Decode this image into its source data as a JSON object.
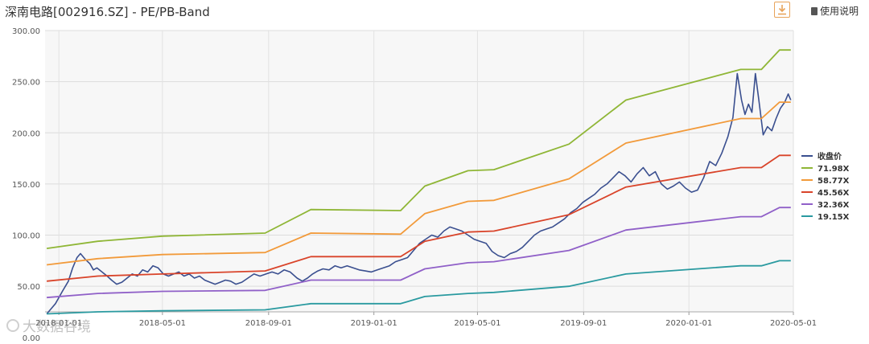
{
  "header": {
    "title": "深南电路[002916.SZ] - PE/PB-Band",
    "download_icon": "download-icon",
    "help_label": "使用说明",
    "help_icon": "document-icon"
  },
  "watermark": {
    "text": "大数据谷境"
  },
  "chart_data": {
    "type": "line",
    "title": "",
    "xlabel": "",
    "ylabel": "",
    "ylim": [
      25,
      300
    ],
    "y_ticks": [
      "300.00",
      "250.00",
      "200.00",
      "150.00",
      "100.00",
      "50.00",
      "0.00"
    ],
    "x_ticks": [
      "2018-01-01",
      "2018-05-01",
      "2018-09-01",
      "2019-01-01",
      "2019-05-01",
      "2019-09-01",
      "2020-01-01",
      "2020-05-01"
    ],
    "grid": true,
    "legend_position": "right",
    "x_start": "2017-12-16",
    "x_end": "2020-05-01",
    "series": [
      {
        "name": "收盘价",
        "color": "#3a4f8f",
        "points": [
          [
            "2017-12-18",
            23
          ],
          [
            "2017-12-22",
            27
          ],
          [
            "2017-12-28",
            33
          ],
          [
            "2018-01-05",
            45
          ],
          [
            "2018-01-12",
            55
          ],
          [
            "2018-01-17",
            68
          ],
          [
            "2018-01-22",
            78
          ],
          [
            "2018-01-26",
            82
          ],
          [
            "2018-02-01",
            76
          ],
          [
            "2018-02-06",
            72
          ],
          [
            "2018-02-10",
            66
          ],
          [
            "2018-02-14",
            68
          ],
          [
            "2018-02-20",
            64
          ],
          [
            "2018-02-26",
            60
          ],
          [
            "2018-03-03",
            56
          ],
          [
            "2018-03-09",
            52
          ],
          [
            "2018-03-15",
            54
          ],
          [
            "2018-03-21",
            58
          ],
          [
            "2018-03-27",
            62
          ],
          [
            "2018-04-02",
            60
          ],
          [
            "2018-04-08",
            66
          ],
          [
            "2018-04-14",
            64
          ],
          [
            "2018-04-20",
            70
          ],
          [
            "2018-04-26",
            68
          ],
          [
            "2018-05-02",
            62
          ],
          [
            "2018-05-08",
            60
          ],
          [
            "2018-05-14",
            62
          ],
          [
            "2018-05-20",
            64
          ],
          [
            "2018-05-26",
            60
          ],
          [
            "2018-06-01",
            62
          ],
          [
            "2018-06-07",
            58
          ],
          [
            "2018-06-13",
            60
          ],
          [
            "2018-06-19",
            56
          ],
          [
            "2018-06-25",
            54
          ],
          [
            "2018-07-01",
            52
          ],
          [
            "2018-07-07",
            54
          ],
          [
            "2018-07-13",
            56
          ],
          [
            "2018-07-19",
            55
          ],
          [
            "2018-07-25",
            52
          ],
          [
            "2018-08-01",
            54
          ],
          [
            "2018-08-08",
            58
          ],
          [
            "2018-08-15",
            62
          ],
          [
            "2018-08-22",
            60
          ],
          [
            "2018-08-29",
            62
          ],
          [
            "2018-09-05",
            64
          ],
          [
            "2018-09-12",
            62
          ],
          [
            "2018-09-19",
            66
          ],
          [
            "2018-09-26",
            64
          ],
          [
            "2018-10-04",
            58
          ],
          [
            "2018-10-10",
            55
          ],
          [
            "2018-10-16",
            58
          ],
          [
            "2018-10-22",
            62
          ],
          [
            "2018-10-28",
            65
          ],
          [
            "2018-11-03",
            67
          ],
          [
            "2018-11-10",
            66
          ],
          [
            "2018-11-17",
            70
          ],
          [
            "2018-11-24",
            68
          ],
          [
            "2018-12-01",
            70
          ],
          [
            "2018-12-08",
            68
          ],
          [
            "2018-12-15",
            66
          ],
          [
            "2018-12-22",
            65
          ],
          [
            "2018-12-29",
            64
          ],
          [
            "2019-01-05",
            66
          ],
          [
            "2019-01-12",
            68
          ],
          [
            "2019-01-19",
            70
          ],
          [
            "2019-01-26",
            74
          ],
          [
            "2019-02-02",
            76
          ],
          [
            "2019-02-09",
            78
          ],
          [
            "2019-02-16",
            85
          ],
          [
            "2019-02-23",
            92
          ],
          [
            "2019-03-02",
            96
          ],
          [
            "2019-03-09",
            100
          ],
          [
            "2019-03-16",
            98
          ],
          [
            "2019-03-23",
            104
          ],
          [
            "2019-03-30",
            108
          ],
          [
            "2019-04-06",
            106
          ],
          [
            "2019-04-13",
            104
          ],
          [
            "2019-04-20",
            100
          ],
          [
            "2019-04-27",
            96
          ],
          [
            "2019-05-04",
            94
          ],
          [
            "2019-05-11",
            92
          ],
          [
            "2019-05-18",
            84
          ],
          [
            "2019-05-25",
            80
          ],
          [
            "2019-06-01",
            78
          ],
          [
            "2019-06-08",
            82
          ],
          [
            "2019-06-15",
            84
          ],
          [
            "2019-06-22",
            88
          ],
          [
            "2019-06-29",
            94
          ],
          [
            "2019-07-06",
            100
          ],
          [
            "2019-07-13",
            104
          ],
          [
            "2019-07-20",
            106
          ],
          [
            "2019-07-27",
            108
          ],
          [
            "2019-08-03",
            112
          ],
          [
            "2019-08-10",
            116
          ],
          [
            "2019-08-17",
            122
          ],
          [
            "2019-08-24",
            126
          ],
          [
            "2019-08-31",
            132
          ],
          [
            "2019-09-07",
            136
          ],
          [
            "2019-09-14",
            140
          ],
          [
            "2019-09-21",
            146
          ],
          [
            "2019-09-28",
            150
          ],
          [
            "2019-10-05",
            156
          ],
          [
            "2019-10-12",
            162
          ],
          [
            "2019-10-19",
            158
          ],
          [
            "2019-10-26",
            152
          ],
          [
            "2019-11-02",
            160
          ],
          [
            "2019-11-09",
            166
          ],
          [
            "2019-11-16",
            158
          ],
          [
            "2019-11-23",
            162
          ],
          [
            "2019-11-30",
            150
          ],
          [
            "2019-12-07",
            145
          ],
          [
            "2019-12-14",
            148
          ],
          [
            "2019-12-21",
            152
          ],
          [
            "2019-12-28",
            146
          ],
          [
            "2020-01-04",
            142
          ],
          [
            "2020-01-11",
            144
          ],
          [
            "2020-01-18",
            156
          ],
          [
            "2020-01-25",
            172
          ],
          [
            "2020-02-01",
            168
          ],
          [
            "2020-02-08",
            180
          ],
          [
            "2020-02-15",
            196
          ],
          [
            "2020-02-21",
            215
          ],
          [
            "2020-02-26",
            258
          ],
          [
            "2020-03-02",
            232
          ],
          [
            "2020-03-06",
            218
          ],
          [
            "2020-03-10",
            228
          ],
          [
            "2020-03-14",
            220
          ],
          [
            "2020-03-18",
            258
          ],
          [
            "2020-03-22",
            232
          ],
          [
            "2020-03-27",
            198
          ],
          [
            "2020-04-01",
            206
          ],
          [
            "2020-04-06",
            202
          ],
          [
            "2020-04-11",
            214
          ],
          [
            "2020-04-16",
            224
          ],
          [
            "2020-04-21",
            230
          ],
          [
            "2020-04-25",
            238
          ],
          [
            "2020-04-28",
            232
          ]
        ]
      },
      {
        "name": "71.98X",
        "color": "#8fb636",
        "points": [
          [
            "2017-12-18",
            87
          ],
          [
            "2018-02-15",
            94
          ],
          [
            "2018-05-01",
            99
          ],
          [
            "2018-08-28",
            102
          ],
          [
            "2018-10-20",
            125
          ],
          [
            "2019-02-01",
            124
          ],
          [
            "2019-03-01",
            148
          ],
          [
            "2019-04-20",
            163
          ],
          [
            "2019-05-20",
            164
          ],
          [
            "2019-08-15",
            189
          ],
          [
            "2019-10-20",
            232
          ],
          [
            "2020-03-01",
            262
          ],
          [
            "2020-03-25",
            262
          ],
          [
            "2020-04-15",
            281
          ],
          [
            "2020-04-28",
            281
          ]
        ]
      },
      {
        "name": "58.77X",
        "color": "#f29a3a",
        "points": [
          [
            "2017-12-18",
            71
          ],
          [
            "2018-02-15",
            77
          ],
          [
            "2018-05-01",
            81
          ],
          [
            "2018-08-28",
            83
          ],
          [
            "2018-10-20",
            102
          ],
          [
            "2019-02-01",
            101
          ],
          [
            "2019-03-01",
            121
          ],
          [
            "2019-04-20",
            133
          ],
          [
            "2019-05-20",
            134
          ],
          [
            "2019-08-15",
            155
          ],
          [
            "2019-10-20",
            190
          ],
          [
            "2020-03-01",
            214
          ],
          [
            "2020-03-25",
            214
          ],
          [
            "2020-04-15",
            230
          ],
          [
            "2020-04-28",
            230
          ]
        ]
      },
      {
        "name": "45.56X",
        "color": "#d9442a",
        "points": [
          [
            "2017-12-18",
            55
          ],
          [
            "2018-02-15",
            60
          ],
          [
            "2018-05-01",
            62
          ],
          [
            "2018-08-28",
            65
          ],
          [
            "2018-10-20",
            79
          ],
          [
            "2019-02-01",
            79
          ],
          [
            "2019-03-01",
            94
          ],
          [
            "2019-04-20",
            103
          ],
          [
            "2019-05-20",
            104
          ],
          [
            "2019-08-15",
            120
          ],
          [
            "2019-10-20",
            147
          ],
          [
            "2020-03-01",
            166
          ],
          [
            "2020-03-25",
            166
          ],
          [
            "2020-04-15",
            178
          ],
          [
            "2020-04-28",
            178
          ]
        ]
      },
      {
        "name": "32.36X",
        "color": "#9060c8",
        "points": [
          [
            "2017-12-18",
            39
          ],
          [
            "2018-02-15",
            43
          ],
          [
            "2018-05-01",
            45
          ],
          [
            "2018-08-28",
            46
          ],
          [
            "2018-10-20",
            56
          ],
          [
            "2019-02-01",
            56
          ],
          [
            "2019-03-01",
            67
          ],
          [
            "2019-04-20",
            73
          ],
          [
            "2019-05-20",
            74
          ],
          [
            "2019-08-15",
            85
          ],
          [
            "2019-10-20",
            105
          ],
          [
            "2020-03-01",
            118
          ],
          [
            "2020-03-25",
            118
          ],
          [
            "2020-04-15",
            127
          ],
          [
            "2020-04-28",
            127
          ]
        ]
      },
      {
        "name": "19.15X",
        "color": "#2a9aa0",
        "points": [
          [
            "2017-12-18",
            23
          ],
          [
            "2018-02-15",
            25
          ],
          [
            "2018-05-01",
            26
          ],
          [
            "2018-08-28",
            27
          ],
          [
            "2018-10-20",
            33
          ],
          [
            "2019-02-01",
            33
          ],
          [
            "2019-03-01",
            40
          ],
          [
            "2019-04-20",
            43
          ],
          [
            "2019-05-20",
            44
          ],
          [
            "2019-08-15",
            50
          ],
          [
            "2019-10-20",
            62
          ],
          [
            "2020-03-01",
            70
          ],
          [
            "2020-03-25",
            70
          ],
          [
            "2020-04-15",
            75
          ],
          [
            "2020-04-28",
            75
          ]
        ]
      }
    ]
  }
}
